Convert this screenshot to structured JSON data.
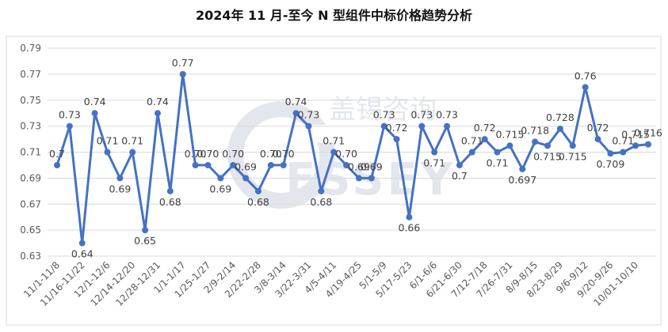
{
  "chart_data": {
    "type": "line",
    "title": "2024年 11 月-至今 N 型组件中标价格趋势分析",
    "watermark": "盖锡咨询 GESSEY",
    "line_color": "#4472c4",
    "ylim": [
      0.63,
      0.79
    ],
    "yticks": [
      "0.63",
      "0.65",
      "0.67",
      "0.69",
      "0.71",
      "0.73",
      "0.75",
      "0.77",
      "0.79"
    ],
    "grid": "horizontal",
    "x": [
      "11/1-11/8",
      "",
      "11/16-11/22",
      "",
      "12/1-12/6",
      "",
      "12/14-12/20",
      "",
      "12/28-12/31",
      "",
      "1/1-1/17",
      "",
      "1/25-1/27",
      "",
      "2/9-2/14",
      "",
      "2/22-2/28",
      "",
      "3/8-3/14",
      "",
      "3/22-3/31",
      "",
      "4/5-4/11",
      "",
      "4/19-4/25",
      "",
      "5/1-5/9",
      "",
      "5/17-5/23",
      "",
      "6/1-6/6",
      "",
      "6/21-6/30",
      "",
      "7/12-7/18",
      "",
      "7/26-7/31",
      "",
      "8/9-8/15",
      "",
      "8/23-8/29",
      "",
      "9/6-9/12",
      "",
      "9/20-9/26",
      "",
      "10/01-10/10",
      ""
    ],
    "values": [
      0.7,
      0.73,
      0.64,
      0.74,
      0.71,
      0.69,
      0.71,
      0.65,
      0.74,
      0.68,
      0.77,
      0.7,
      0.7,
      0.69,
      0.7,
      0.69,
      0.68,
      0.7,
      0.7,
      0.74,
      0.73,
      0.68,
      0.71,
      0.7,
      0.69,
      0.69,
      0.73,
      0.72,
      0.66,
      0.73,
      0.71,
      0.73,
      0.7,
      0.71,
      0.72,
      0.71,
      0.715,
      0.697,
      0.718,
      0.715,
      0.728,
      0.715,
      0.76,
      0.72,
      0.709,
      0.71,
      0.715,
      0.716
    ],
    "labels": [
      "0.7",
      "0.73",
      "0.64",
      "0.74",
      "0.71",
      "0.69",
      "0.71",
      "0.65",
      "0.74",
      "0.68",
      "0.77",
      "0.70",
      "0.70",
      "0.69",
      "0.70",
      "0.69",
      "0.68",
      "0.70",
      "0.70",
      "0.74",
      "0.73",
      "0.68",
      "0.71",
      "0.70",
      "0.69",
      "0.69",
      "0.73",
      "0.72",
      "0.66",
      "0.73",
      "0.71",
      "0.73",
      "0.7",
      "0.71",
      "0.72",
      "0.71",
      "0.715",
      "0.697",
      "0.718",
      "0.715",
      "0.728",
      "0.715",
      "0.76",
      "0.72",
      "0.709",
      "0.71",
      "0.715",
      "0.716"
    ]
  }
}
